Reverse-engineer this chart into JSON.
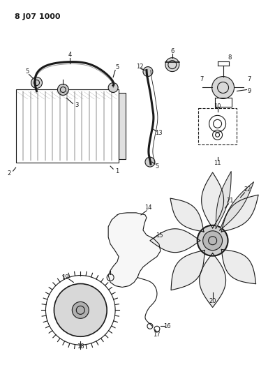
{
  "title": "8 J07 1000",
  "bg_color": "#ffffff",
  "line_color": "#1a1a1a",
  "fig_width": 3.94,
  "fig_height": 5.33,
  "dpi": 100
}
